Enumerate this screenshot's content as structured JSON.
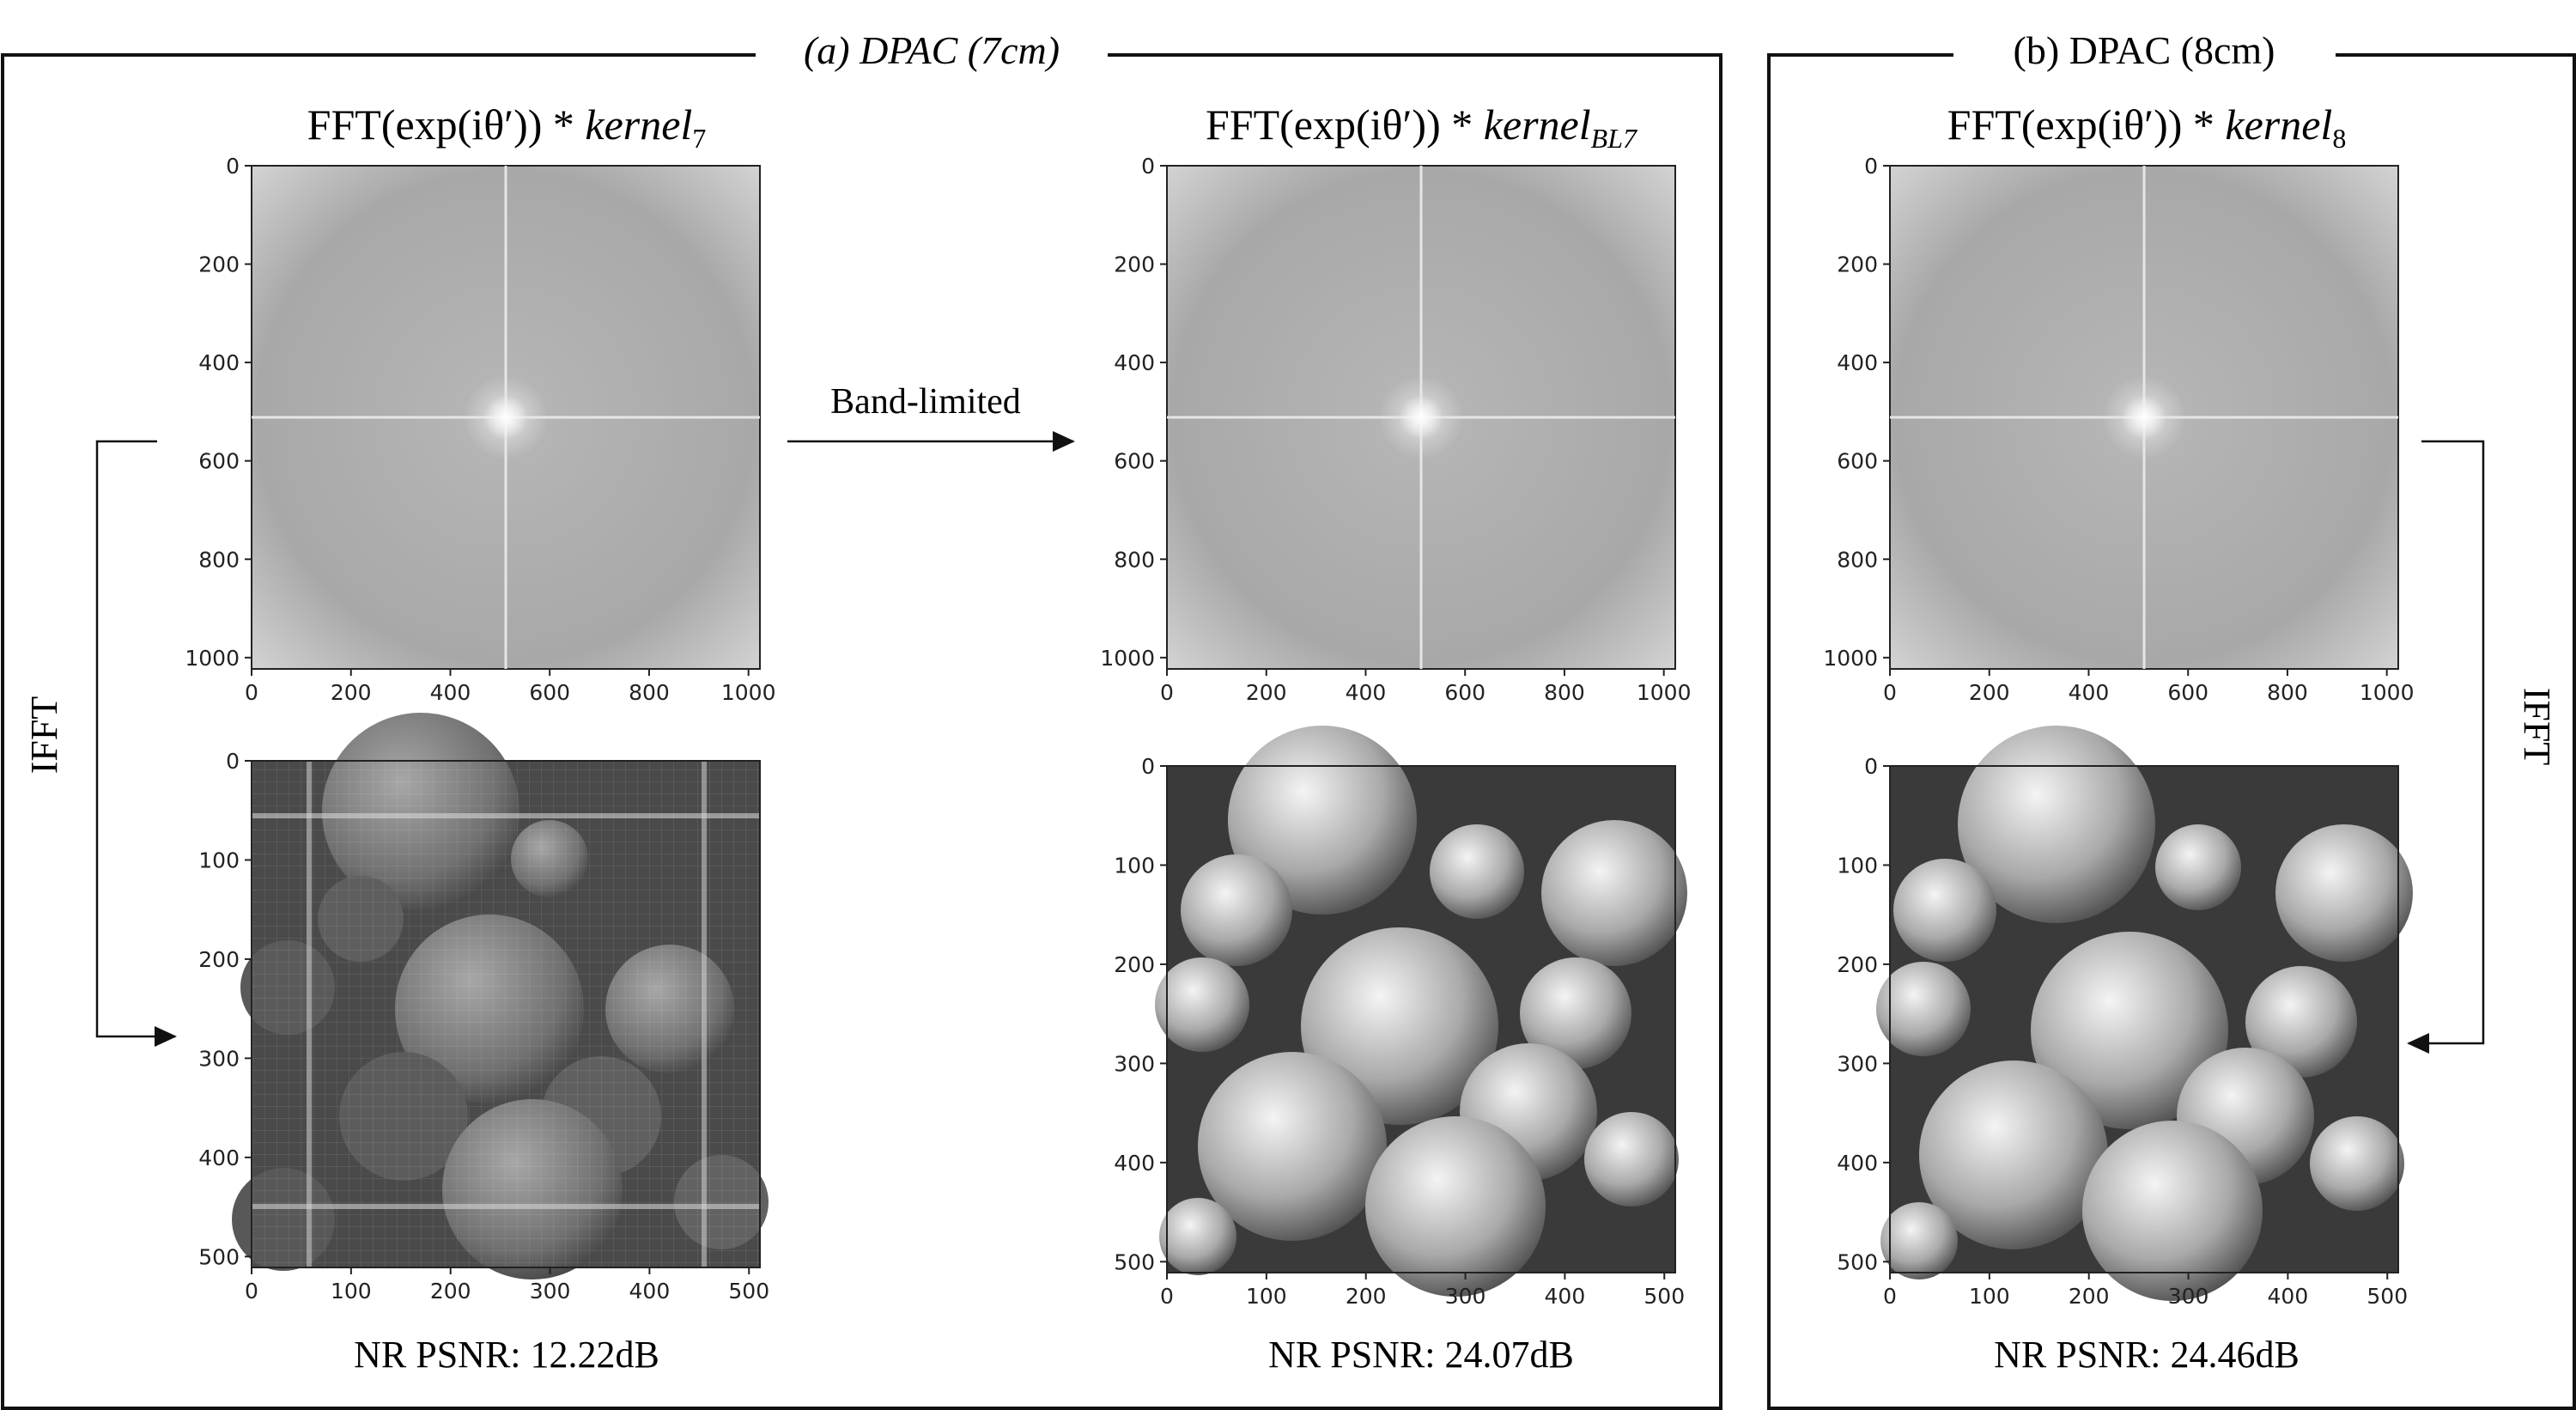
{
  "groups": {
    "a_label": "(a) DPAC (7cm)",
    "b_label": "(b) DPAC (8cm)"
  },
  "panels": {
    "p1": {
      "title_prefix": "FFT(exp(iθ′)) * ",
      "title_kernel": "kernel",
      "title_sub": "7"
    },
    "p2": {
      "title_prefix": "FFT(exp(iθ′)) * ",
      "title_kernel": "kernel",
      "title_sub": "BL7"
    },
    "p3": {
      "title_prefix": "FFT(exp(iθ′)) * ",
      "title_kernel": "kernel",
      "title_sub": "8"
    }
  },
  "arrows": {
    "band_limited": "Band-limited",
    "ifft_left": "IFFT",
    "ifft_right": "IFFT"
  },
  "fft_ticks": [
    "0",
    "200",
    "400",
    "600",
    "800",
    "1000"
  ],
  "recon_ticks": [
    "0",
    "100",
    "200",
    "300",
    "400",
    "500"
  ],
  "psnr": {
    "p1": "NR PSNR: 12.22dB",
    "p2": "NR PSNR: 24.07dB",
    "p3": "NR PSNR: 24.46dB"
  },
  "colors": {
    "frame": "#111111",
    "fft_bg": "#b2b2b2",
    "recon_dark": "#4a4a4a"
  }
}
